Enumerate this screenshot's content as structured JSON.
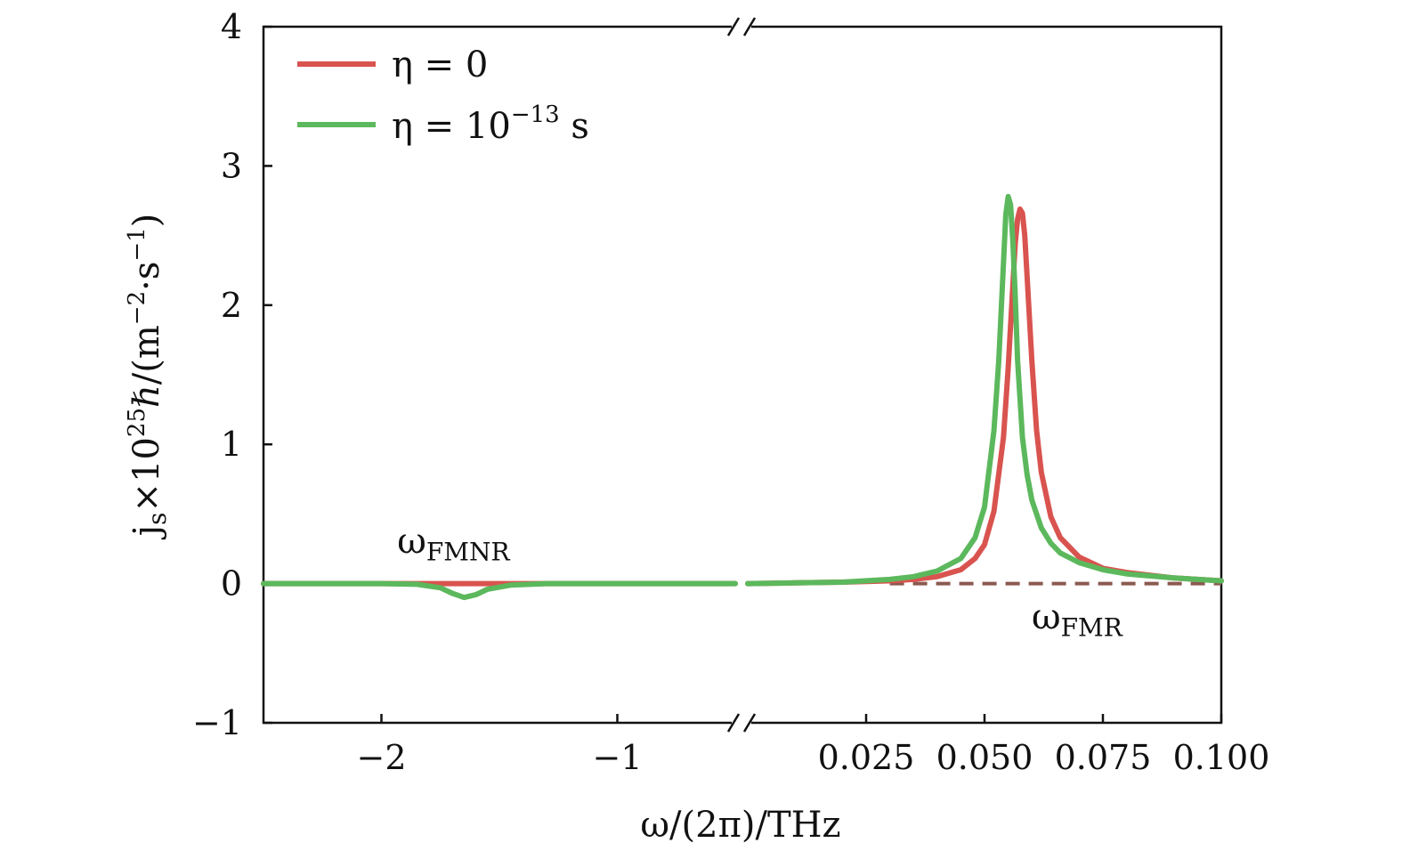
{
  "chart_data": {
    "type": "line",
    "xlabel": {
      "pre": "ω/(2π)/THz"
    },
    "ylabel": {
      "a": "j",
      "b": "s",
      "c": "×10",
      "d": "25",
      "e": "ℏ/(m",
      "f": "−2",
      "g": "·s",
      "h": "−1",
      "i": ")"
    },
    "ylim": [
      -1,
      4
    ],
    "yticks": [
      "−1",
      "0",
      "1",
      "2",
      "3",
      "4"
    ],
    "ytick_values": [
      -1,
      0,
      1,
      2,
      3,
      4
    ],
    "broken_x_axis": true,
    "left_panel": {
      "xlim": [
        -2.5,
        -0.5
      ],
      "xticks": [
        "−2",
        "−1"
      ],
      "xtick_values": [
        -2,
        -1
      ]
    },
    "right_panel": {
      "xlim": [
        0.0,
        0.1
      ],
      "xticks": [
        "0.025",
        "0.050",
        "0.075",
        "0.100"
      ],
      "xtick_values": [
        0.025,
        0.05,
        0.075,
        0.1
      ]
    },
    "legend_position": "top-left",
    "series": [
      {
        "name": {
          "a": "η = 0"
        },
        "color": "#d9534f",
        "left": {
          "x": [
            -2.5,
            -2.0,
            -1.8,
            -1.6,
            -1.4,
            -1.2,
            -1.0,
            -0.8,
            -0.5
          ],
          "y": [
            0.0,
            0.0,
            0.0,
            0.0,
            0.0,
            0.0,
            0.0,
            0.0,
            0.0
          ]
        },
        "right": {
          "x": [
            0.0,
            0.01,
            0.02,
            0.03,
            0.035,
            0.04,
            0.045,
            0.048,
            0.05,
            0.052,
            0.054,
            0.055,
            0.056,
            0.0565,
            0.057,
            0.0575,
            0.058,
            0.0585,
            0.059,
            0.06,
            0.061,
            0.062,
            0.064,
            0.066,
            0.07,
            0.075,
            0.08,
            0.09,
            0.1
          ],
          "y": [
            0.0,
            0.005,
            0.01,
            0.02,
            0.03,
            0.05,
            0.1,
            0.18,
            0.28,
            0.52,
            1.05,
            1.55,
            2.15,
            2.45,
            2.62,
            2.69,
            2.66,
            2.5,
            2.2,
            1.6,
            1.1,
            0.8,
            0.48,
            0.33,
            0.19,
            0.11,
            0.08,
            0.04,
            0.02
          ]
        }
      },
      {
        "name": {
          "a": "η = 10",
          "b": "−13",
          "c": " s"
        },
        "color": "#5cb85c",
        "left": {
          "x": [
            -2.5,
            -2.0,
            -1.85,
            -1.75,
            -1.7,
            -1.65,
            -1.6,
            -1.55,
            -1.45,
            -1.3,
            -1.0,
            -0.8,
            -0.5
          ],
          "y": [
            0.0,
            0.0,
            -0.005,
            -0.03,
            -0.07,
            -0.1,
            -0.08,
            -0.04,
            -0.01,
            0.0,
            0.0,
            0.0,
            0.0
          ]
        },
        "right": {
          "x": [
            0.0,
            0.01,
            0.02,
            0.03,
            0.035,
            0.04,
            0.045,
            0.048,
            0.05,
            0.052,
            0.053,
            0.054,
            0.0545,
            0.055,
            0.0555,
            0.056,
            0.0565,
            0.057,
            0.058,
            0.059,
            0.06,
            0.062,
            0.064,
            0.066,
            0.07,
            0.075,
            0.08,
            0.09,
            0.1
          ],
          "y": [
            0.0,
            0.005,
            0.01,
            0.03,
            0.05,
            0.09,
            0.18,
            0.33,
            0.55,
            1.1,
            1.6,
            2.3,
            2.65,
            2.78,
            2.72,
            2.45,
            2.05,
            1.6,
            1.05,
            0.78,
            0.6,
            0.4,
            0.29,
            0.22,
            0.15,
            0.1,
            0.07,
            0.04,
            0.02
          ]
        }
      }
    ],
    "baseline": {
      "style": "dashed",
      "color": "#8b5a50",
      "right_x_range": [
        0.03,
        0.1
      ],
      "y": 0
    },
    "annotations": [
      {
        "sym": "ω",
        "sub": "FMNR",
        "panel": "left",
        "x": -1.65,
        "y": 0.18
      },
      {
        "sym": "ω",
        "sub": "FMR",
        "panel": "right",
        "x": 0.075,
        "y": -0.3
      }
    ]
  }
}
